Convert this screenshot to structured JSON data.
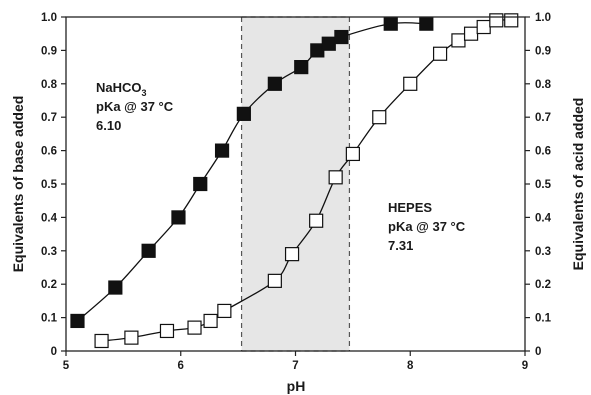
{
  "chart_data": {
    "type": "scatter",
    "title": "",
    "xlabel": "pH",
    "ylabel": "Equivalents of base added",
    "y2label": "Equivalents of acid added",
    "xlim": [
      5,
      9
    ],
    "ylim": [
      0,
      1.0
    ],
    "y2lim": [
      1.0,
      0
    ],
    "x_ticks": [
      "5",
      "6",
      "7",
      "8",
      "9"
    ],
    "y_ticks": [
      "0",
      "0.1",
      "0.2",
      "0.3",
      "0.4",
      "0.5",
      "0.6",
      "0.7",
      "0.8",
      "0.9",
      "1.0"
    ],
    "y2_ticks": [
      "1.0",
      "0.9",
      "0.8",
      "0.7",
      "0.6",
      "0.5",
      "0.4",
      "0.3",
      "0.2",
      "0.1",
      "0"
    ],
    "grid": false,
    "shaded_region": {
      "x": [
        6.53,
        7.47
      ],
      "color": "#e6e6e6"
    },
    "series": [
      {
        "name": "NaHCO3",
        "marker": "filled-square",
        "color": "#111111",
        "x": [
          5.1,
          5.43,
          5.72,
          5.98,
          6.17,
          6.36,
          6.55,
          6.82,
          7.05,
          7.19,
          7.29,
          7.4,
          7.83,
          8.14
        ],
        "y": [
          0.09,
          0.19,
          0.3,
          0.4,
          0.5,
          0.6,
          0.71,
          0.8,
          0.85,
          0.9,
          0.92,
          0.94,
          0.98,
          0.98
        ]
      },
      {
        "name": "HEPES",
        "marker": "open-square",
        "color": "#111111",
        "x": [
          5.31,
          5.57,
          5.88,
          6.12,
          6.26,
          6.38,
          6.82,
          6.97,
          7.18,
          7.35,
          7.5,
          7.73,
          8.0,
          8.26,
          8.42,
          8.53,
          8.64,
          8.75,
          8.88
        ],
        "y": [
          0.03,
          0.04,
          0.06,
          0.07,
          0.09,
          0.12,
          0.21,
          0.29,
          0.39,
          0.52,
          0.59,
          0.7,
          0.8,
          0.89,
          0.93,
          0.95,
          0.97,
          0.99,
          0.99
        ]
      }
    ],
    "annotations": {
      "nahco3": {
        "name_main": "NaHCO",
        "name_sub": "3",
        "line2": "pKa @ 37 °C",
        "line3": "6.10"
      },
      "hepes": {
        "line1": "HEPES",
        "line2": "pKa @ 37 °C",
        "line3": "7.31"
      }
    }
  }
}
